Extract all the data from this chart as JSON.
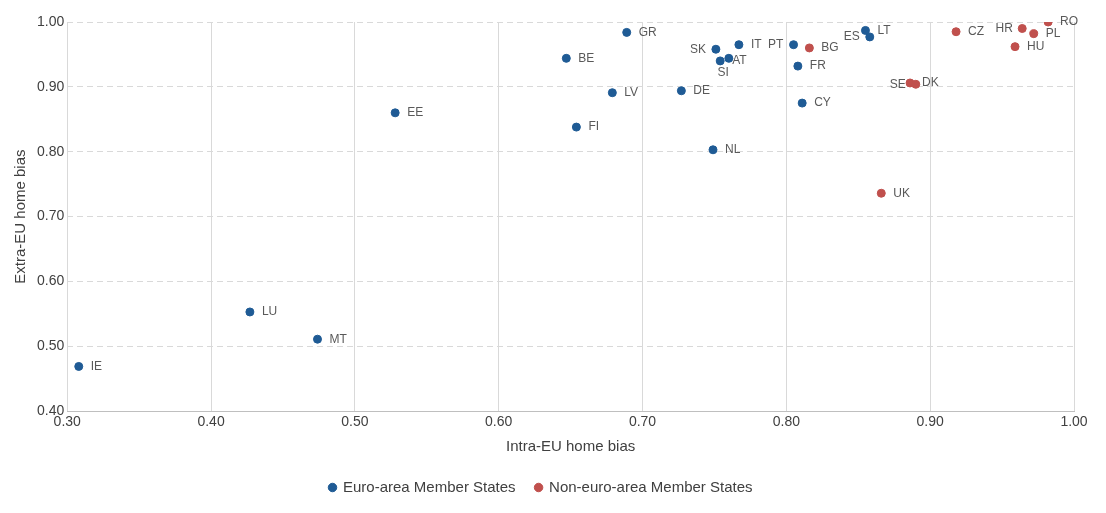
{
  "chart_data": {
    "type": "scatter",
    "xlabel": "Intra-EU home bias",
    "ylabel": "Extra-EU home bias",
    "xlim": [
      0.3,
      1.0
    ],
    "xticks": [
      {
        "value": 0.3,
        "label": "0.30"
      },
      {
        "value": 0.4,
        "label": "0.40"
      },
      {
        "value": 0.5,
        "label": "0.50"
      },
      {
        "value": 0.6,
        "label": "0.60"
      },
      {
        "value": 0.7,
        "label": "0.70"
      },
      {
        "value": 0.8,
        "label": "0.80"
      },
      {
        "value": 0.9,
        "label": "0.90"
      },
      {
        "value": 1.0,
        "label": "1.00"
      }
    ],
    "ylim": [
      0.4,
      1.0
    ],
    "yticks": [
      {
        "value": 0.4,
        "label": "0.40"
      },
      {
        "value": 0.5,
        "label": "0.50"
      },
      {
        "value": 0.6,
        "label": "0.60"
      },
      {
        "value": 0.7,
        "label": "0.70"
      },
      {
        "value": 0.8,
        "label": "0.80"
      },
      {
        "value": 0.9,
        "label": "0.90"
      },
      {
        "value": 1.0,
        "label": "1.00"
      }
    ],
    "grid": true,
    "legend": "bottom",
    "marker": "circle",
    "series": [
      {
        "name": "Euro-area Member States",
        "color": "#1f5b95",
        "x": [
          0.308,
          0.427,
          0.474,
          0.528,
          0.689,
          0.647,
          0.679,
          0.654,
          0.727,
          0.749,
          0.751,
          0.767,
          0.754,
          0.76,
          0.805,
          0.808,
          0.811,
          0.855,
          0.858
        ],
        "values": [
          0.469,
          0.553,
          0.511,
          0.86,
          0.984,
          0.944,
          0.891,
          0.838,
          0.894,
          0.803,
          0.958,
          0.965,
          0.94,
          0.944,
          0.965,
          0.932,
          0.875,
          0.987,
          0.977
        ]
      },
      {
        "name": "Non-euro-area Member States",
        "color": "#c0504d",
        "x": [
          0.816,
          0.886,
          0.89,
          0.866,
          0.918,
          0.964,
          0.972,
          0.959,
          0.982
        ],
        "values": [
          0.96,
          0.906,
          0.904,
          0.736,
          0.985,
          0.99,
          0.982,
          0.962,
          1.0
        ]
      }
    ],
    "annotations": [
      {
        "text": "IE",
        "x": 0.308,
        "y": 0.469
      },
      {
        "text": "LU",
        "x": 0.427,
        "y": 0.553
      },
      {
        "text": "MT",
        "x": 0.474,
        "y": 0.511
      },
      {
        "text": "EE",
        "x": 0.528,
        "y": 0.86
      },
      {
        "text": "GR",
        "x": 0.689,
        "y": 0.984
      },
      {
        "text": "BE",
        "x": 0.647,
        "y": 0.944
      },
      {
        "text": "LV",
        "x": 0.679,
        "y": 0.891
      },
      {
        "text": "FI",
        "x": 0.654,
        "y": 0.838
      },
      {
        "text": "DE",
        "x": 0.727,
        "y": 0.894
      },
      {
        "text": "NL",
        "x": 0.749,
        "y": 0.803
      },
      {
        "text": "SK",
        "x": 0.751,
        "y": 0.958
      },
      {
        "text": "IT",
        "x": 0.767,
        "y": 0.965
      },
      {
        "text": "AT",
        "x": 0.754,
        "y": 0.94
      },
      {
        "text": "SI",
        "x": 0.76,
        "y": 0.944
      },
      {
        "text": "PT",
        "x": 0.805,
        "y": 0.965
      },
      {
        "text": "FR",
        "x": 0.808,
        "y": 0.932
      },
      {
        "text": "CY",
        "x": 0.811,
        "y": 0.875
      },
      {
        "text": "LT",
        "x": 0.855,
        "y": 0.987
      },
      {
        "text": "ES",
        "x": 0.858,
        "y": 0.977
      },
      {
        "text": "BG",
        "x": 0.816,
        "y": 0.96
      },
      {
        "text": "DK",
        "x": 0.886,
        "y": 0.906
      },
      {
        "text": "SE",
        "x": 0.89,
        "y": 0.904
      },
      {
        "text": "UK",
        "x": 0.866,
        "y": 0.736
      },
      {
        "text": "CZ",
        "x": 0.918,
        "y": 0.985
      },
      {
        "text": "HR",
        "x": 0.964,
        "y": 0.99
      },
      {
        "text": "PL",
        "x": 0.972,
        "y": 0.982
      },
      {
        "text": "HU",
        "x": 0.959,
        "y": 0.962
      },
      {
        "text": "RO",
        "x": 0.982,
        "y": 1.0
      }
    ]
  }
}
